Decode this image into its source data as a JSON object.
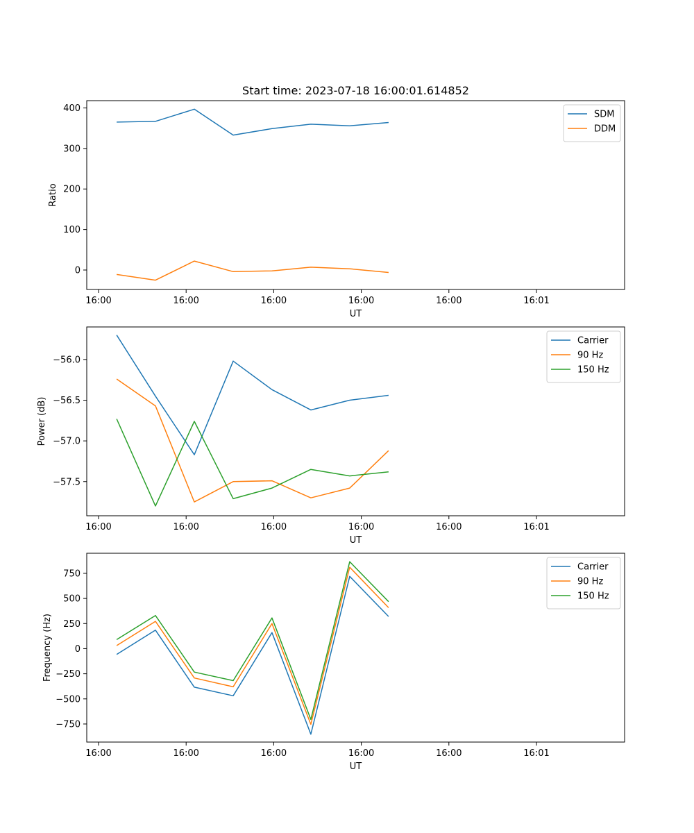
{
  "chart_data": [
    {
      "type": "line",
      "title": "Start time: 2023-07-18 16:00:01.614852",
      "xlabel": "UT",
      "ylabel": "Ratio",
      "legend_position": "upper-right",
      "x_ticks": [
        "16:00",
        "16:00",
        "16:00",
        "16:00",
        "16:00",
        "16:01"
      ],
      "xlim": [
        0,
        9
      ],
      "x": [
        0.5,
        1.15,
        1.8,
        2.45,
        3.1,
        3.75,
        4.4,
        5.05
      ],
      "ylim": [
        -48,
        418
      ],
      "y_ticks": [
        0,
        100,
        200,
        300,
        400
      ],
      "series": [
        {
          "name": "SDM",
          "color": "#1f77b4",
          "values": [
            365,
            367,
            397,
            333,
            349,
            360,
            356,
            364
          ]
        },
        {
          "name": "DDM",
          "color": "#ff7f0e",
          "values": [
            -11,
            -25,
            22,
            -4,
            -2,
            7,
            3,
            -6
          ]
        }
      ]
    },
    {
      "type": "line",
      "title": "",
      "xlabel": "UT",
      "ylabel": "Power (dB)",
      "legend_position": "upper-right",
      "x_ticks": [
        "16:00",
        "16:00",
        "16:00",
        "16:00",
        "16:00",
        "16:01"
      ],
      "xlim": [
        0,
        9
      ],
      "x": [
        0.5,
        1.15,
        1.8,
        2.45,
        3.1,
        3.75,
        4.4,
        5.05
      ],
      "ylim": [
        -57.92,
        -55.6
      ],
      "y_ticks": [
        -56.0,
        -56.5,
        -57.0,
        -57.5
      ],
      "series": [
        {
          "name": "Carrier",
          "color": "#1f77b4",
          "values": [
            -55.7,
            -56.45,
            -57.17,
            -56.02,
            -56.37,
            -56.62,
            -56.5,
            -56.44
          ]
        },
        {
          "name": "90 Hz",
          "color": "#ff7f0e",
          "values": [
            -56.24,
            -56.57,
            -57.75,
            -57.5,
            -57.49,
            -57.7,
            -57.58,
            -57.12
          ]
        },
        {
          "name": "150 Hz",
          "color": "#2ca02c",
          "values": [
            -56.73,
            -57.8,
            -56.76,
            -57.71,
            -57.58,
            -57.35,
            -57.43,
            -57.38
          ]
        }
      ]
    },
    {
      "type": "line",
      "title": "",
      "xlabel": "UT",
      "ylabel": "Frequency (Hz)",
      "legend_position": "upper-right",
      "x_ticks": [
        "16:00",
        "16:00",
        "16:00",
        "16:00",
        "16:00",
        "16:01"
      ],
      "xlim": [
        0,
        9
      ],
      "x": [
        0.5,
        1.15,
        1.8,
        2.45,
        3.1,
        3.75,
        4.4,
        5.05
      ],
      "ylim": [
        -930,
        950
      ],
      "y_ticks": [
        750,
        500,
        250,
        0,
        -250,
        -500,
        -750
      ],
      "series": [
        {
          "name": "Carrier",
          "color": "#1f77b4",
          "values": [
            -57,
            184,
            -383,
            -469,
            160,
            -852,
            720,
            320
          ]
        },
        {
          "name": "90 Hz",
          "color": "#ff7f0e",
          "values": [
            31,
            272,
            -292,
            -380,
            250,
            -754,
            811,
            408
          ]
        },
        {
          "name": "150 Hz",
          "color": "#2ca02c",
          "values": [
            90,
            330,
            -233,
            -318,
            306,
            -705,
            866,
            468
          ]
        }
      ]
    }
  ]
}
